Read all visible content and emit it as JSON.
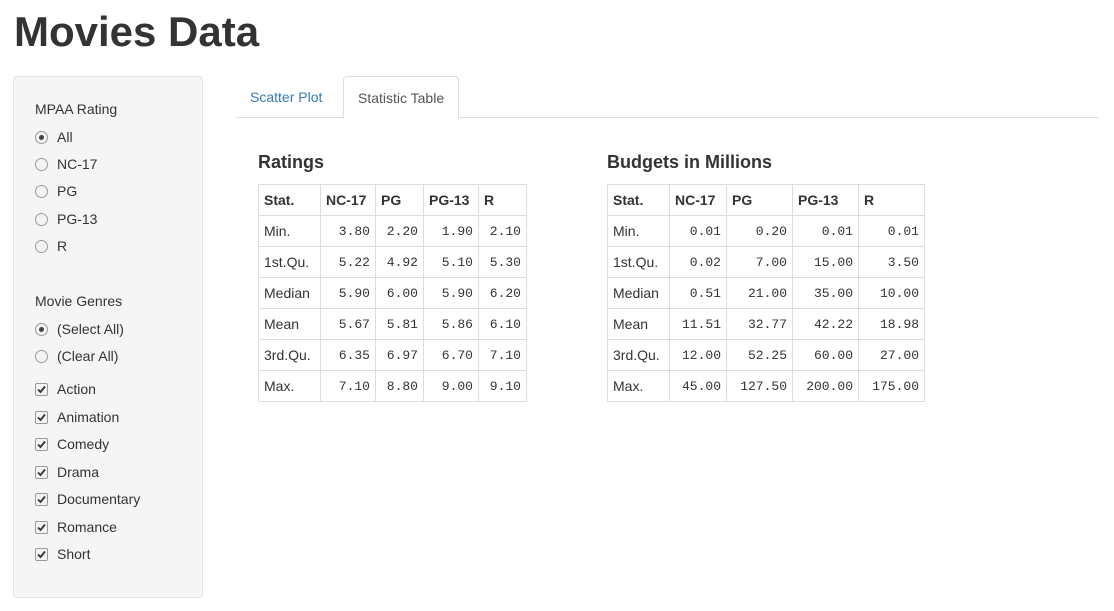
{
  "app": {
    "title": "Movies Data"
  },
  "sidebar": {
    "mpaa": {
      "label": "MPAA Rating",
      "options": [
        {
          "label": "All",
          "selected": true
        },
        {
          "label": "NC-17",
          "selected": false
        },
        {
          "label": "PG",
          "selected": false
        },
        {
          "label": "PG-13",
          "selected": false
        },
        {
          "label": "R",
          "selected": false
        }
      ]
    },
    "genres": {
      "label": "Movie Genres",
      "radio": [
        {
          "label": "(Select All)",
          "selected": true
        },
        {
          "label": "(Clear All)",
          "selected": false
        }
      ],
      "checks": [
        {
          "label": "Action",
          "checked": true
        },
        {
          "label": "Animation",
          "checked": true
        },
        {
          "label": "Comedy",
          "checked": true
        },
        {
          "label": "Drama",
          "checked": true
        },
        {
          "label": "Documentary",
          "checked": true
        },
        {
          "label": "Romance",
          "checked": true
        },
        {
          "label": "Short",
          "checked": true
        }
      ]
    }
  },
  "tabs": [
    {
      "label": "Scatter Plot",
      "active": false
    },
    {
      "label": "Statistic Table",
      "active": true
    }
  ],
  "ratings": {
    "title": "Ratings",
    "headers": [
      "Stat.",
      "NC-17",
      "PG",
      "PG-13",
      "R"
    ],
    "rows": [
      [
        "Min.",
        "3.80",
        "2.20",
        "1.90",
        "2.10"
      ],
      [
        "1st.Qu.",
        "5.22",
        "4.92",
        "5.10",
        "5.30"
      ],
      [
        "Median",
        "5.90",
        "6.00",
        "5.90",
        "6.20"
      ],
      [
        "Mean",
        "5.67",
        "5.81",
        "5.86",
        "6.10"
      ],
      [
        "3rd.Qu.",
        "6.35",
        "6.97",
        "6.70",
        "7.10"
      ],
      [
        "Max.",
        "7.10",
        "8.80",
        "9.00",
        "9.10"
      ]
    ]
  },
  "budgets": {
    "title": "Budgets in Millions",
    "headers": [
      "Stat.",
      "NC-17",
      "PG",
      "PG-13",
      "R"
    ],
    "rows": [
      [
        "Min.",
        "0.01",
        "0.20",
        "0.01",
        "0.01"
      ],
      [
        "1st.Qu.",
        "0.02",
        "7.00",
        "15.00",
        "3.50"
      ],
      [
        "Median",
        "0.51",
        "21.00",
        "35.00",
        "10.00"
      ],
      [
        "Mean",
        "11.51",
        "32.77",
        "42.22",
        "18.98"
      ],
      [
        "3rd.Qu.",
        "12.00",
        "52.25",
        "60.00",
        "27.00"
      ],
      [
        "Max.",
        "45.00",
        "127.50",
        "200.00",
        "175.00"
      ]
    ]
  }
}
